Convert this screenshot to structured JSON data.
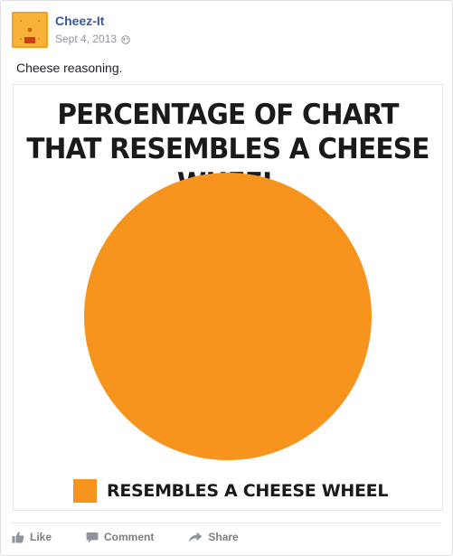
{
  "post": {
    "page_name": "Cheez-It",
    "date": "Sept 4, 2013",
    "privacy_icon": "globe-icon",
    "caption": "Cheese reasoning."
  },
  "chart_data": {
    "type": "pie",
    "title": "PERCENTAGE OF CHART THAT RESEMBLES A CHEESE WHEEL",
    "categories": [
      "RESEMBLES A CHEESE WHEEL"
    ],
    "values": [
      100
    ],
    "legend": "bottom",
    "colors": [
      "#f7941d"
    ]
  },
  "actions": [
    {
      "label": "Like",
      "icon": "thumbs-up-icon"
    },
    {
      "label": "Comment",
      "icon": "comment-icon"
    },
    {
      "label": "Share",
      "icon": "share-icon"
    }
  ],
  "colors": {
    "link": "#3b5998",
    "meta": "#90949c",
    "cheese": "#f7941d",
    "action": "#7f7f7f"
  }
}
